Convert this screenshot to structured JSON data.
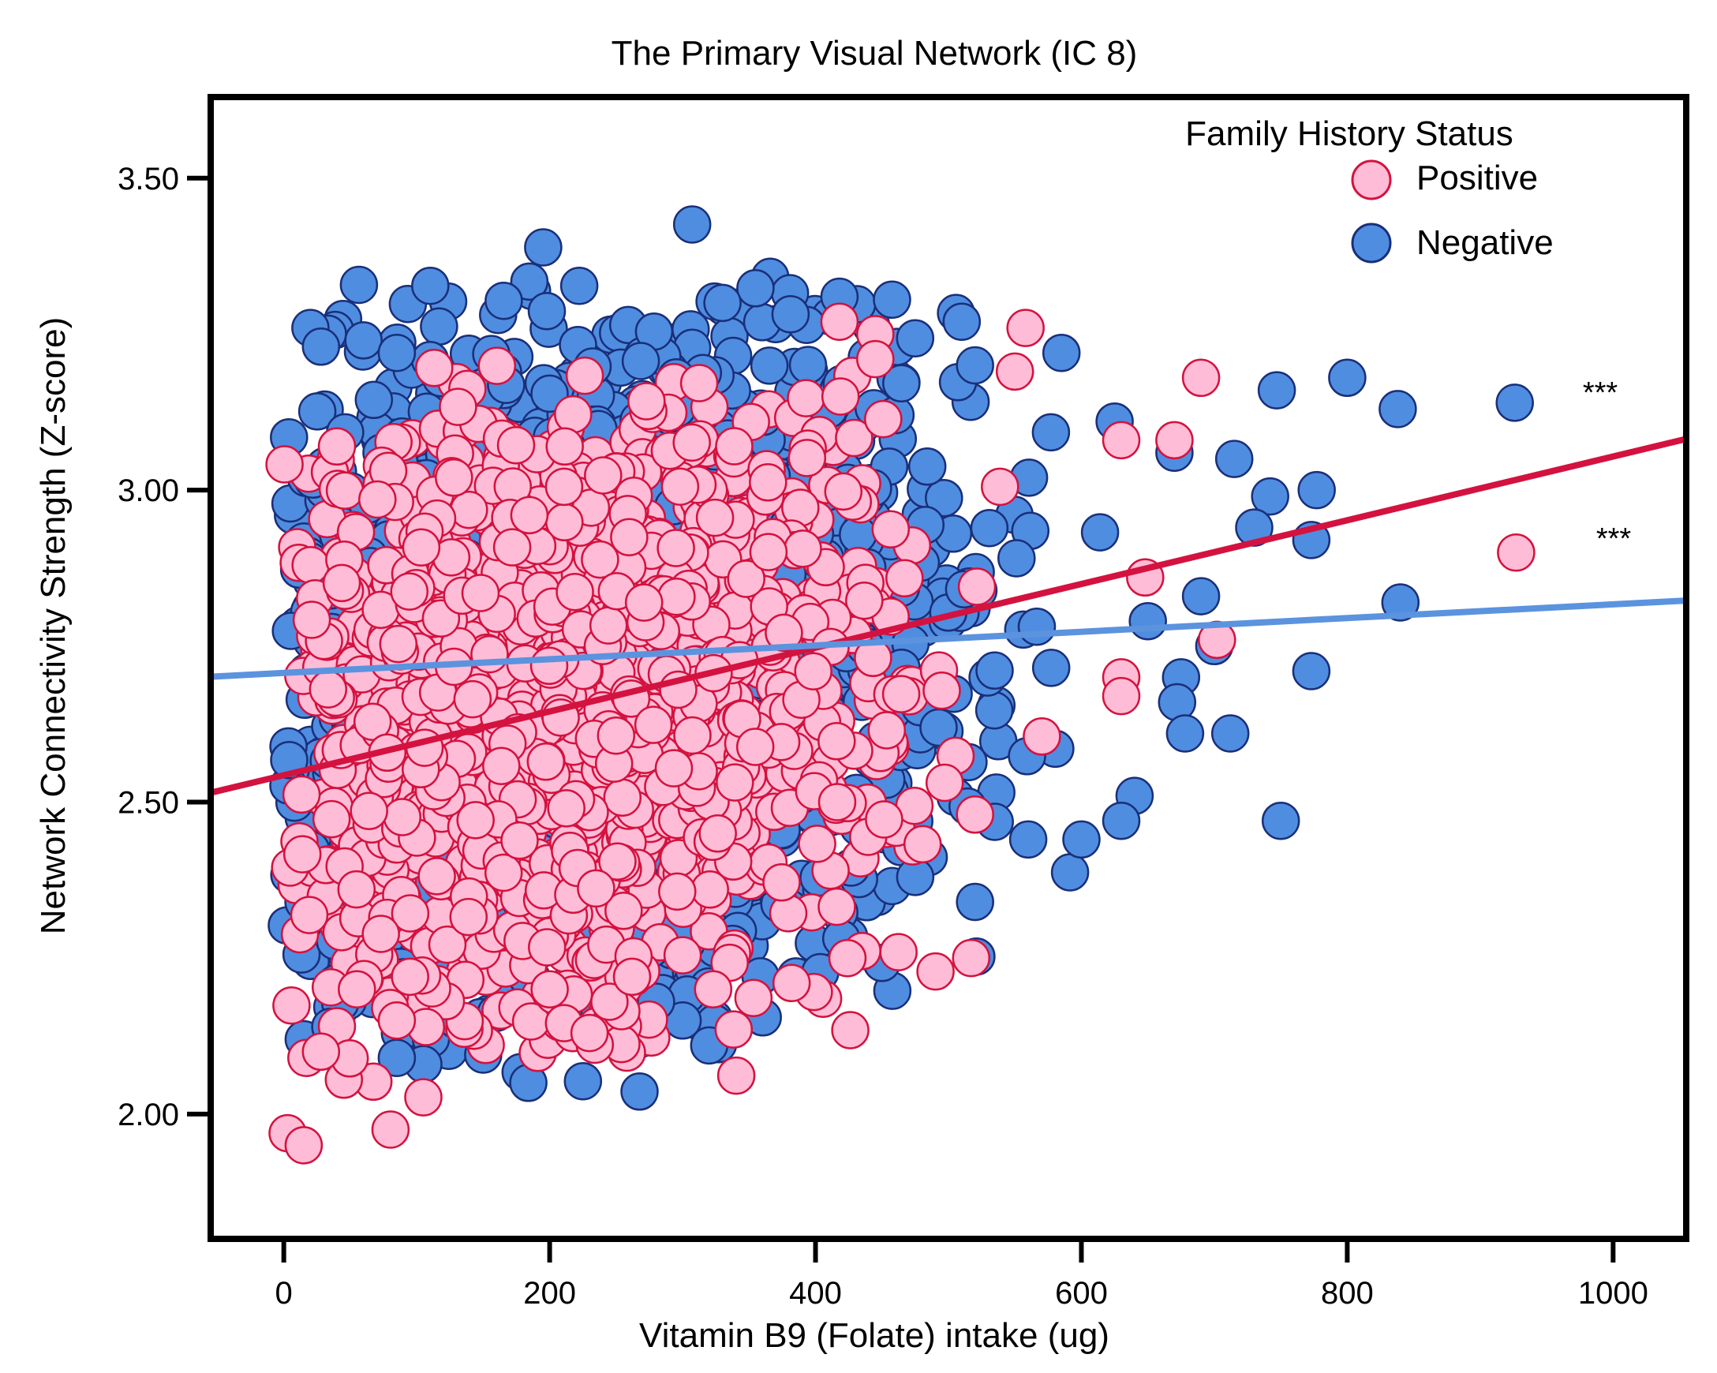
{
  "chart_data": {
    "type": "scatter",
    "title": "The Primary Visual Network (IC 8)",
    "xlabel": "Vitamin B9 (Folate) intake (ug)",
    "ylabel": "Network Connectivity Strength (Z-score)",
    "xlim": [
      -55,
      1055
    ],
    "ylim": [
      1.8,
      3.63
    ],
    "xticks": [
      0,
      200,
      400,
      600,
      800,
      1000
    ],
    "xtick_labels": [
      "0",
      "200",
      "400",
      "600",
      "800",
      "1000"
    ],
    "yticks": [
      2.0,
      2.5,
      3.0,
      3.5
    ],
    "ytick_labels": [
      "2.00",
      "2.50",
      "3.00",
      "3.50"
    ],
    "legend": {
      "title": "Family History Status",
      "placement": "top-right",
      "entries": [
        {
          "label": "Positive",
          "series": "positive"
        },
        {
          "label": "Negative",
          "series": "negative"
        }
      ]
    },
    "series": [
      {
        "name": "Negative",
        "key": "negative",
        "fill": "#4F8DE0",
        "stroke": "#1A2F7A",
        "generated_cloud": {
          "n": 2600,
          "x_range": [
            0,
            640
          ],
          "y_center": 2.72,
          "y_spread": 0.42,
          "seed": 11
        },
        "points": [
          [
            20,
            3.26
          ],
          [
            28,
            3.23
          ],
          [
            60,
            3.24
          ],
          [
            85,
            3.22
          ],
          [
            330,
            3.3
          ],
          [
            418,
            3.31
          ],
          [
            510,
            3.27
          ],
          [
            585,
            3.22
          ],
          [
            520,
            3.2
          ],
          [
            625,
            3.11
          ],
          [
            670,
            3.06
          ],
          [
            715,
            3.05
          ],
          [
            742,
            2.99
          ],
          [
            777,
            3.0
          ],
          [
            730,
            2.94
          ],
          [
            773,
            2.92
          ],
          [
            747,
            3.16
          ],
          [
            800,
            3.18
          ],
          [
            838,
            3.13
          ],
          [
            926,
            3.14
          ],
          [
            840,
            2.82
          ],
          [
            690,
            2.83
          ],
          [
            650,
            2.79
          ],
          [
            675,
            2.7
          ],
          [
            700,
            2.75
          ],
          [
            672,
            2.66
          ],
          [
            678,
            2.61
          ],
          [
            712,
            2.61
          ],
          [
            773,
            2.71
          ],
          [
            750,
            2.47
          ],
          [
            640,
            2.51
          ],
          [
            630,
            2.47
          ],
          [
            600,
            2.44
          ],
          [
            520,
            2.34
          ],
          [
            475,
            2.38
          ],
          [
            560,
            2.44
          ],
          [
            184,
            2.05
          ],
          [
            320,
            2.11
          ],
          [
            300,
            2.15
          ],
          [
            130,
            2.15
          ],
          [
            105,
            2.08
          ],
          [
            85,
            2.09
          ],
          [
            15,
            2.12
          ],
          [
            35,
            2.14
          ],
          [
            200,
            2.19
          ],
          [
            280,
            2.18
          ]
        ]
      },
      {
        "name": "Positive",
        "key": "positive",
        "fill": "#FFBCD6",
        "stroke": "#D4123F",
        "generated_cloud": {
          "n": 1400,
          "x_range": [
            0,
            600
          ],
          "y_center": 2.66,
          "y_spread": 0.4,
          "seed": 29
        },
        "points": [
          [
            15,
            1.95
          ],
          [
            17,
            2.09
          ],
          [
            28,
            2.1
          ],
          [
            55,
            2.2
          ],
          [
            80,
            2.17
          ],
          [
            85,
            2.15
          ],
          [
            95,
            2.22
          ],
          [
            200,
            2.2
          ],
          [
            230,
            2.13
          ],
          [
            245,
            2.18
          ],
          [
            262,
            2.22
          ],
          [
            323,
            2.2
          ],
          [
            382,
            2.21
          ],
          [
            418,
            3.27
          ],
          [
            445,
            3.25
          ],
          [
            558,
            3.26
          ],
          [
            690,
            3.18
          ],
          [
            550,
            3.19
          ],
          [
            445,
            3.21
          ],
          [
            630,
            3.08
          ],
          [
            670,
            3.08
          ],
          [
            648,
            2.86
          ],
          [
            630,
            2.7
          ],
          [
            630,
            2.67
          ],
          [
            702,
            2.76
          ],
          [
            520,
            2.48
          ],
          [
            927,
            2.9
          ],
          [
            40,
            3.07
          ],
          [
            128,
            3.02
          ]
        ]
      }
    ],
    "fit_lines": [
      {
        "series": "positive",
        "color": "#D4123F",
        "x": [
          -55,
          1055
        ],
        "y": [
          2.515,
          3.082
        ]
      },
      {
        "series": "negative",
        "color": "#5B93DE",
        "x": [
          -55,
          1055
        ],
        "y": [
          2.701,
          2.823
        ]
      }
    ],
    "annotations": [
      {
        "text": "***",
        "series": "negative"
      },
      {
        "text": "***",
        "series": "positive"
      }
    ]
  }
}
